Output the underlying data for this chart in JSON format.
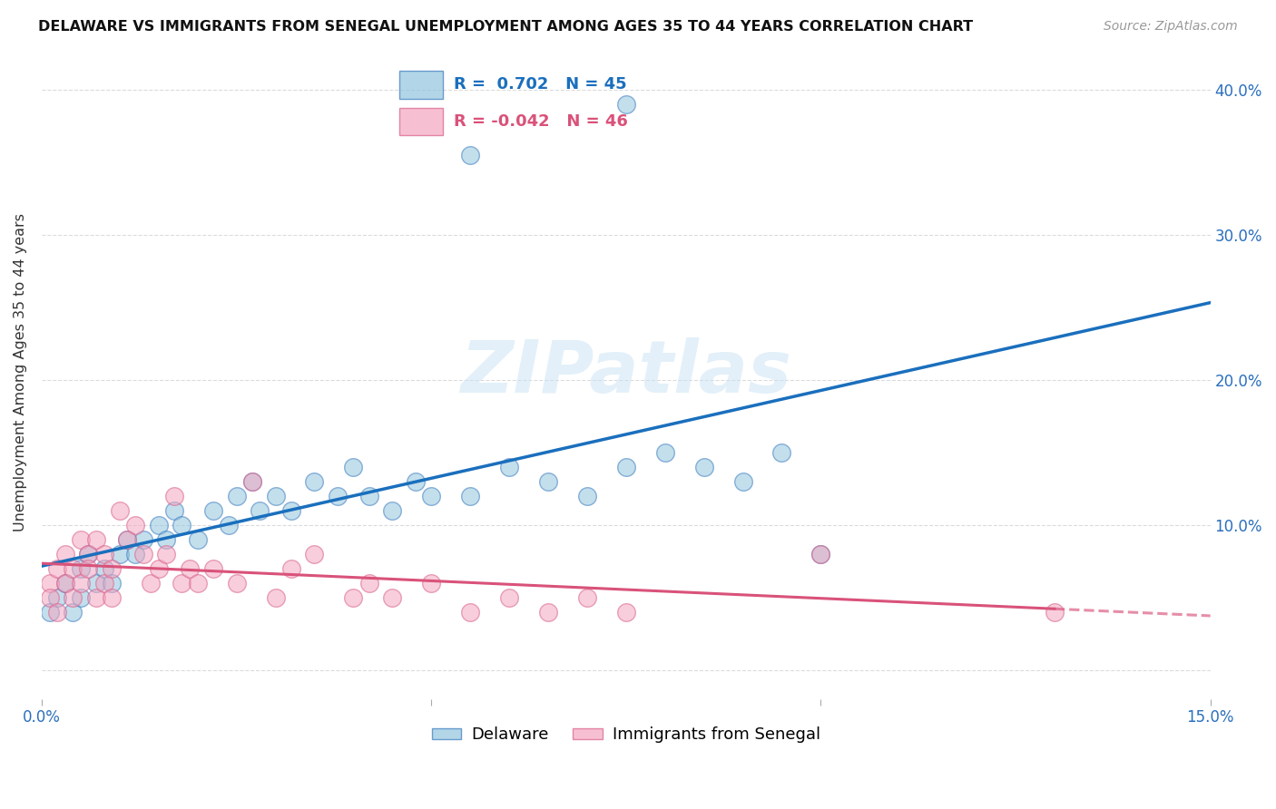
{
  "title": "DELAWARE VS IMMIGRANTS FROM SENEGAL UNEMPLOYMENT AMONG AGES 35 TO 44 YEARS CORRELATION CHART",
  "source": "Source: ZipAtlas.com",
  "ylabel": "Unemployment Among Ages 35 to 44 years",
  "xlim": [
    0.0,
    0.15
  ],
  "ylim": [
    -0.02,
    0.43
  ],
  "watermark": "ZIPatlas",
  "legend_r1_val": "0.702",
  "legend_r1_n": "45",
  "legend_r2_val": "-0.042",
  "legend_r2_n": "46",
  "blue_color": "#92c5de",
  "pink_color": "#f4a6c0",
  "blue_edge_color": "#3a7abf",
  "pink_edge_color": "#d95f8a",
  "blue_line_color": "#1a6fbd",
  "pink_line_color": "#d9527a",
  "background_color": "#ffffff",
  "grid_color": "#cccccc",
  "delaware_x": [
    0.001,
    0.002,
    0.003,
    0.004,
    0.005,
    0.005,
    0.006,
    0.007,
    0.008,
    0.009,
    0.01,
    0.011,
    0.012,
    0.013,
    0.015,
    0.016,
    0.017,
    0.018,
    0.02,
    0.022,
    0.024,
    0.025,
    0.027,
    0.028,
    0.03,
    0.032,
    0.035,
    0.038,
    0.04,
    0.042,
    0.045,
    0.048,
    0.05,
    0.055,
    0.06,
    0.065,
    0.07,
    0.075,
    0.08,
    0.085,
    0.09,
    0.095,
    0.1,
    0.055,
    0.075
  ],
  "delaware_y": [
    0.04,
    0.05,
    0.06,
    0.04,
    0.07,
    0.05,
    0.08,
    0.06,
    0.07,
    0.06,
    0.08,
    0.09,
    0.08,
    0.09,
    0.1,
    0.09,
    0.11,
    0.1,
    0.09,
    0.11,
    0.1,
    0.12,
    0.13,
    0.11,
    0.12,
    0.11,
    0.13,
    0.12,
    0.14,
    0.12,
    0.11,
    0.13,
    0.12,
    0.12,
    0.14,
    0.13,
    0.12,
    0.14,
    0.15,
    0.14,
    0.13,
    0.15,
    0.08,
    0.355,
    0.39
  ],
  "senegal_x": [
    0.001,
    0.001,
    0.002,
    0.002,
    0.003,
    0.003,
    0.004,
    0.004,
    0.005,
    0.005,
    0.006,
    0.006,
    0.007,
    0.007,
    0.008,
    0.008,
    0.009,
    0.009,
    0.01,
    0.011,
    0.012,
    0.013,
    0.014,
    0.015,
    0.016,
    0.017,
    0.018,
    0.019,
    0.02,
    0.022,
    0.025,
    0.027,
    0.03,
    0.032,
    0.035,
    0.04,
    0.042,
    0.045,
    0.05,
    0.055,
    0.06,
    0.065,
    0.07,
    0.075,
    0.1,
    0.13
  ],
  "senegal_y": [
    0.06,
    0.05,
    0.07,
    0.04,
    0.08,
    0.06,
    0.07,
    0.05,
    0.09,
    0.06,
    0.08,
    0.07,
    0.09,
    0.05,
    0.06,
    0.08,
    0.07,
    0.05,
    0.11,
    0.09,
    0.1,
    0.08,
    0.06,
    0.07,
    0.08,
    0.12,
    0.06,
    0.07,
    0.06,
    0.07,
    0.06,
    0.13,
    0.05,
    0.07,
    0.08,
    0.05,
    0.06,
    0.05,
    0.06,
    0.04,
    0.05,
    0.04,
    0.05,
    0.04,
    0.08,
    0.04
  ]
}
